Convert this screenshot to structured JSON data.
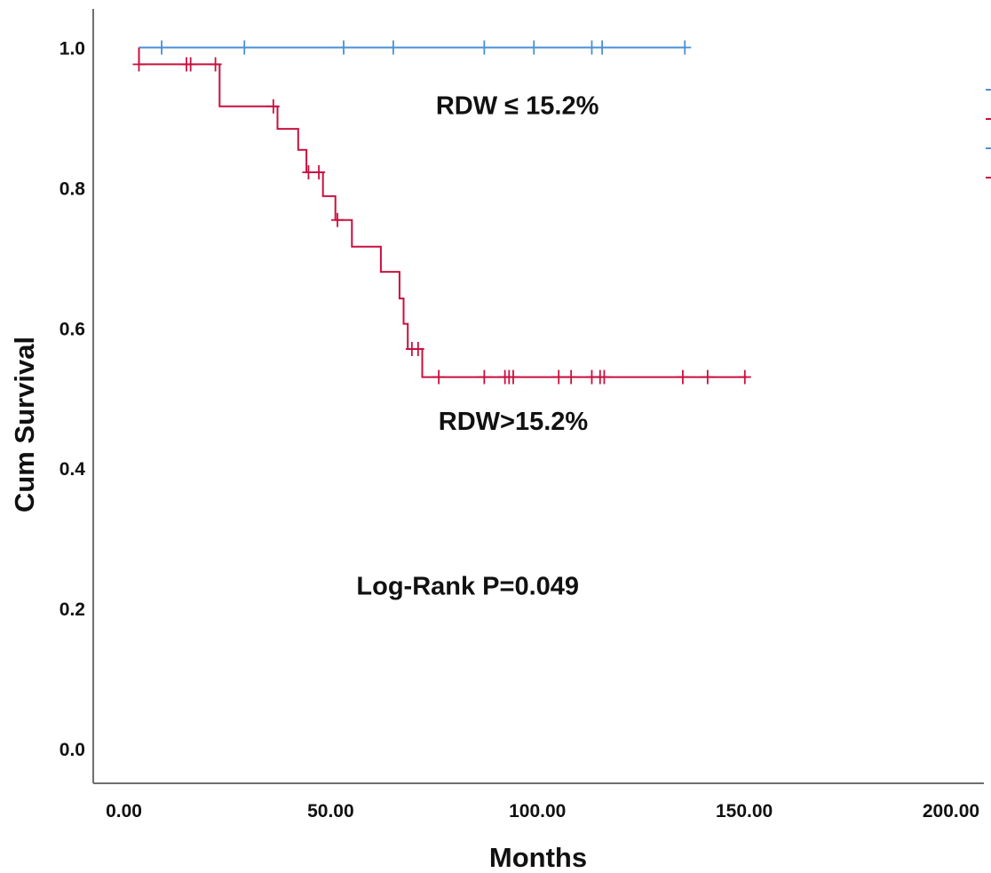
{
  "chart_data": {
    "type": "line",
    "title": "",
    "xlabel": "Months",
    "ylabel": "Cum Survival",
    "xlim": [
      0,
      200
    ],
    "ylim": [
      0,
      1.0
    ],
    "x_ticks": [
      "0.00",
      "50.00",
      "100.00",
      "150.00",
      "200.00"
    ],
    "y_ticks": [
      "0.0",
      "0.2",
      "0.4",
      "0.6",
      "0.8",
      "1.0"
    ],
    "grid": false,
    "series": [
      {
        "name": "RDW ≤ 15.2%",
        "color": "#4a8fd8",
        "steps": [
          [
            4.5,
            1.0
          ],
          [
            136.5,
            1.0
          ]
        ],
        "censored": [
          [
            10,
            1.0
          ],
          [
            30,
            1.0
          ],
          [
            54,
            1.0
          ],
          [
            66,
            1.0
          ],
          [
            88,
            1.0
          ],
          [
            100,
            1.0
          ],
          [
            114,
            1.0
          ],
          [
            116.5,
            1.0
          ],
          [
            136.5,
            1.0
          ]
        ]
      },
      {
        "name": "RDW>15.2%",
        "color": "#c8103e",
        "steps": [
          [
            4.5,
            1.0
          ],
          [
            4.5,
            0.976
          ],
          [
            24,
            0.976
          ],
          [
            24,
            0.916
          ],
          [
            38,
            0.916
          ],
          [
            38,
            0.884
          ],
          [
            43,
            0.884
          ],
          [
            43,
            0.854
          ],
          [
            45,
            0.854
          ],
          [
            45,
            0.822
          ],
          [
            49,
            0.822
          ],
          [
            49,
            0.788
          ],
          [
            52,
            0.788
          ],
          [
            52,
            0.754
          ],
          [
            56,
            0.754
          ],
          [
            56,
            0.716
          ],
          [
            63,
            0.716
          ],
          [
            63,
            0.68
          ],
          [
            67.5,
            0.68
          ],
          [
            67.5,
            0.642
          ],
          [
            68.5,
            0.642
          ],
          [
            68.5,
            0.606
          ],
          [
            69.5,
            0.606
          ],
          [
            69.5,
            0.57
          ],
          [
            73,
            0.57
          ],
          [
            73,
            0.53
          ],
          [
            151.5,
            0.53
          ]
        ],
        "censored": [
          [
            4.5,
            0.976
          ],
          [
            16,
            0.976
          ],
          [
            17,
            0.976
          ],
          [
            23,
            0.976
          ],
          [
            37,
            0.916
          ],
          [
            45.5,
            0.822
          ],
          [
            48,
            0.822
          ],
          [
            52.5,
            0.754
          ],
          [
            70.5,
            0.57
          ],
          [
            72,
            0.57
          ],
          [
            77,
            0.53
          ],
          [
            88,
            0.53
          ],
          [
            93,
            0.53
          ],
          [
            94,
            0.53
          ],
          [
            95,
            0.53
          ],
          [
            106,
            0.53
          ],
          [
            109,
            0.53
          ],
          [
            114,
            0.53
          ],
          [
            116,
            0.53
          ],
          [
            117,
            0.53
          ],
          [
            136,
            0.53
          ],
          [
            142,
            0.53
          ],
          [
            151,
            0.53
          ]
        ]
      }
    ],
    "annotations": [
      {
        "text": "RDW ≤ 15.2%",
        "x": 96,
        "y": 0.905
      },
      {
        "text": "RDW>15.2%",
        "x": 95,
        "y": 0.455
      },
      {
        "text": "Log-Rank  P=0.049",
        "x": 84,
        "y": 0.22
      }
    ],
    "legend": {
      "placement": "right edge (clipped)",
      "colors": [
        "#4a8fd8",
        "#c8103e",
        "#4a8fd8",
        "#c8103e"
      ]
    }
  }
}
